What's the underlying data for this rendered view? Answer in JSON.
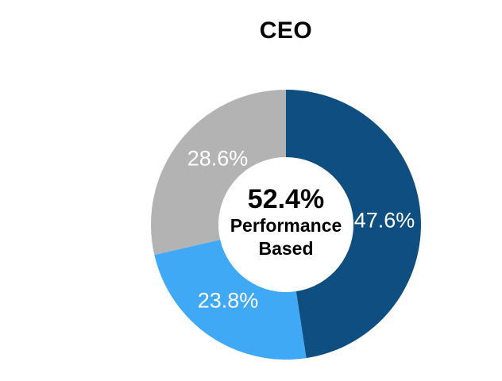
{
  "chart_data": {
    "type": "donut",
    "title": "CEO",
    "segments": [
      {
        "label": "47.6%",
        "value": 47.6,
        "color": "#0F4E80"
      },
      {
        "label": "23.8%",
        "value": 23.8,
        "color": "#3FA9F5"
      },
      {
        "label": "28.6%",
        "value": 28.6,
        "color": "#B3B3B3"
      }
    ],
    "start_angle_deg": 0,
    "direction": "clockwise",
    "inner_radius_ratio": 0.5,
    "segment_label_color": "#FFFFFF",
    "center_label": {
      "headline": "52.4%",
      "line2": "Performance",
      "line3": "Based"
    },
    "legend": "none",
    "background": "#FFFFFF"
  }
}
